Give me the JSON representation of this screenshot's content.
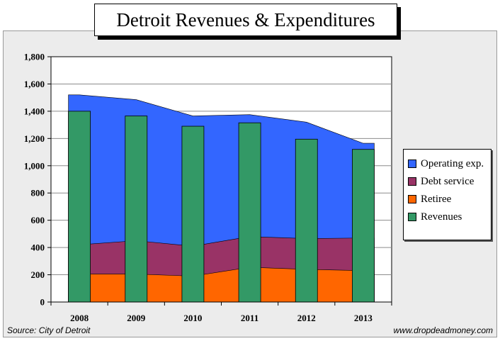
{
  "chart_data": {
    "type": "bar",
    "title": "Detroit Revenues & Expenditures",
    "categories": [
      "2008",
      "2009",
      "2010",
      "2011",
      "2012",
      "2013"
    ],
    "ylim": [
      0,
      1800
    ],
    "yticks": [
      0,
      200,
      400,
      600,
      800,
      1000,
      1200,
      1400,
      1600,
      1800
    ],
    "ytick_labels": [
      "0",
      "200",
      "400",
      "600",
      "800",
      "1,000",
      "1,200",
      "1,400",
      "1,600",
      "1,800"
    ],
    "grid": true,
    "legend_position": "right",
    "series": [
      {
        "name": "Operating exp.",
        "kind": "area",
        "color": "#3366ff",
        "values": [
          1520,
          1485,
          1365,
          1375,
          1320,
          1165
        ]
      },
      {
        "name": "Debt service",
        "kind": "area",
        "color": "#993366",
        "values": [
          420,
          450,
          410,
          480,
          465,
          470
        ]
      },
      {
        "name": "Retiree",
        "kind": "area",
        "color": "#ff6600",
        "values": [
          205,
          205,
          190,
          255,
          240,
          230
        ]
      },
      {
        "name": "Revenues",
        "kind": "bar",
        "color": "#339966",
        "values": [
          1400,
          1365,
          1290,
          1315,
          1195,
          1120
        ]
      }
    ]
  },
  "source_note": "Source: City of Detroit",
  "credit": "www.dropdeadmoney.com"
}
